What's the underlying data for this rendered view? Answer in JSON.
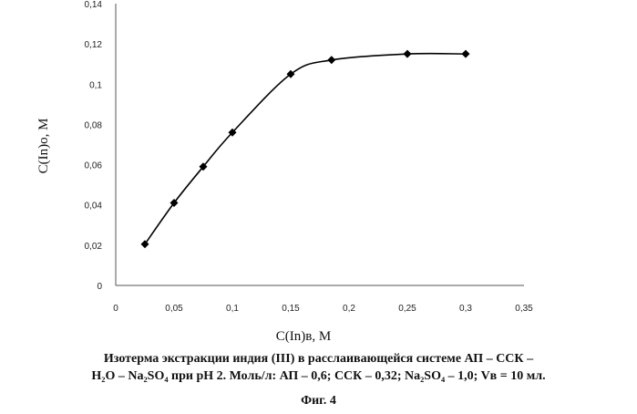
{
  "chart_data": {
    "type": "line",
    "xlabel": "C(In)в, M",
    "ylabel": "C(In)о, M",
    "x_ticks": [
      "0",
      "0,05",
      "0,1",
      "0,15",
      "0,2",
      "0,25",
      "0,3",
      "0,35"
    ],
    "y_ticks": [
      "0",
      "0,02",
      "0,04",
      "0,06",
      "0,08",
      "0,1",
      "0,12",
      "0,14"
    ],
    "xlim": [
      0,
      0.35
    ],
    "ylim": [
      0,
      0.14
    ],
    "grid": false,
    "series": [
      {
        "marker": "diamond",
        "smooth": true,
        "color": "#000000",
        "x": [
          0.025,
          0.05,
          0.075,
          0.1,
          0.15,
          0.185,
          0.25,
          0.3
        ],
        "y": [
          0.0205,
          0.041,
          0.059,
          0.076,
          0.105,
          0.112,
          0.115,
          0.115
        ]
      }
    ]
  },
  "caption": {
    "line1": "Изотерма экстракции индия (III) в расслаивающейся системе АП – ССК –",
    "line2": "H₂O – Na₂SO₄ при pH 2. Моль/л: АП – 0,6; ССК – 0,32; Na₂SO₄ – 1,0; Vв = 10 мл.",
    "figure": "Фиг. 4"
  }
}
